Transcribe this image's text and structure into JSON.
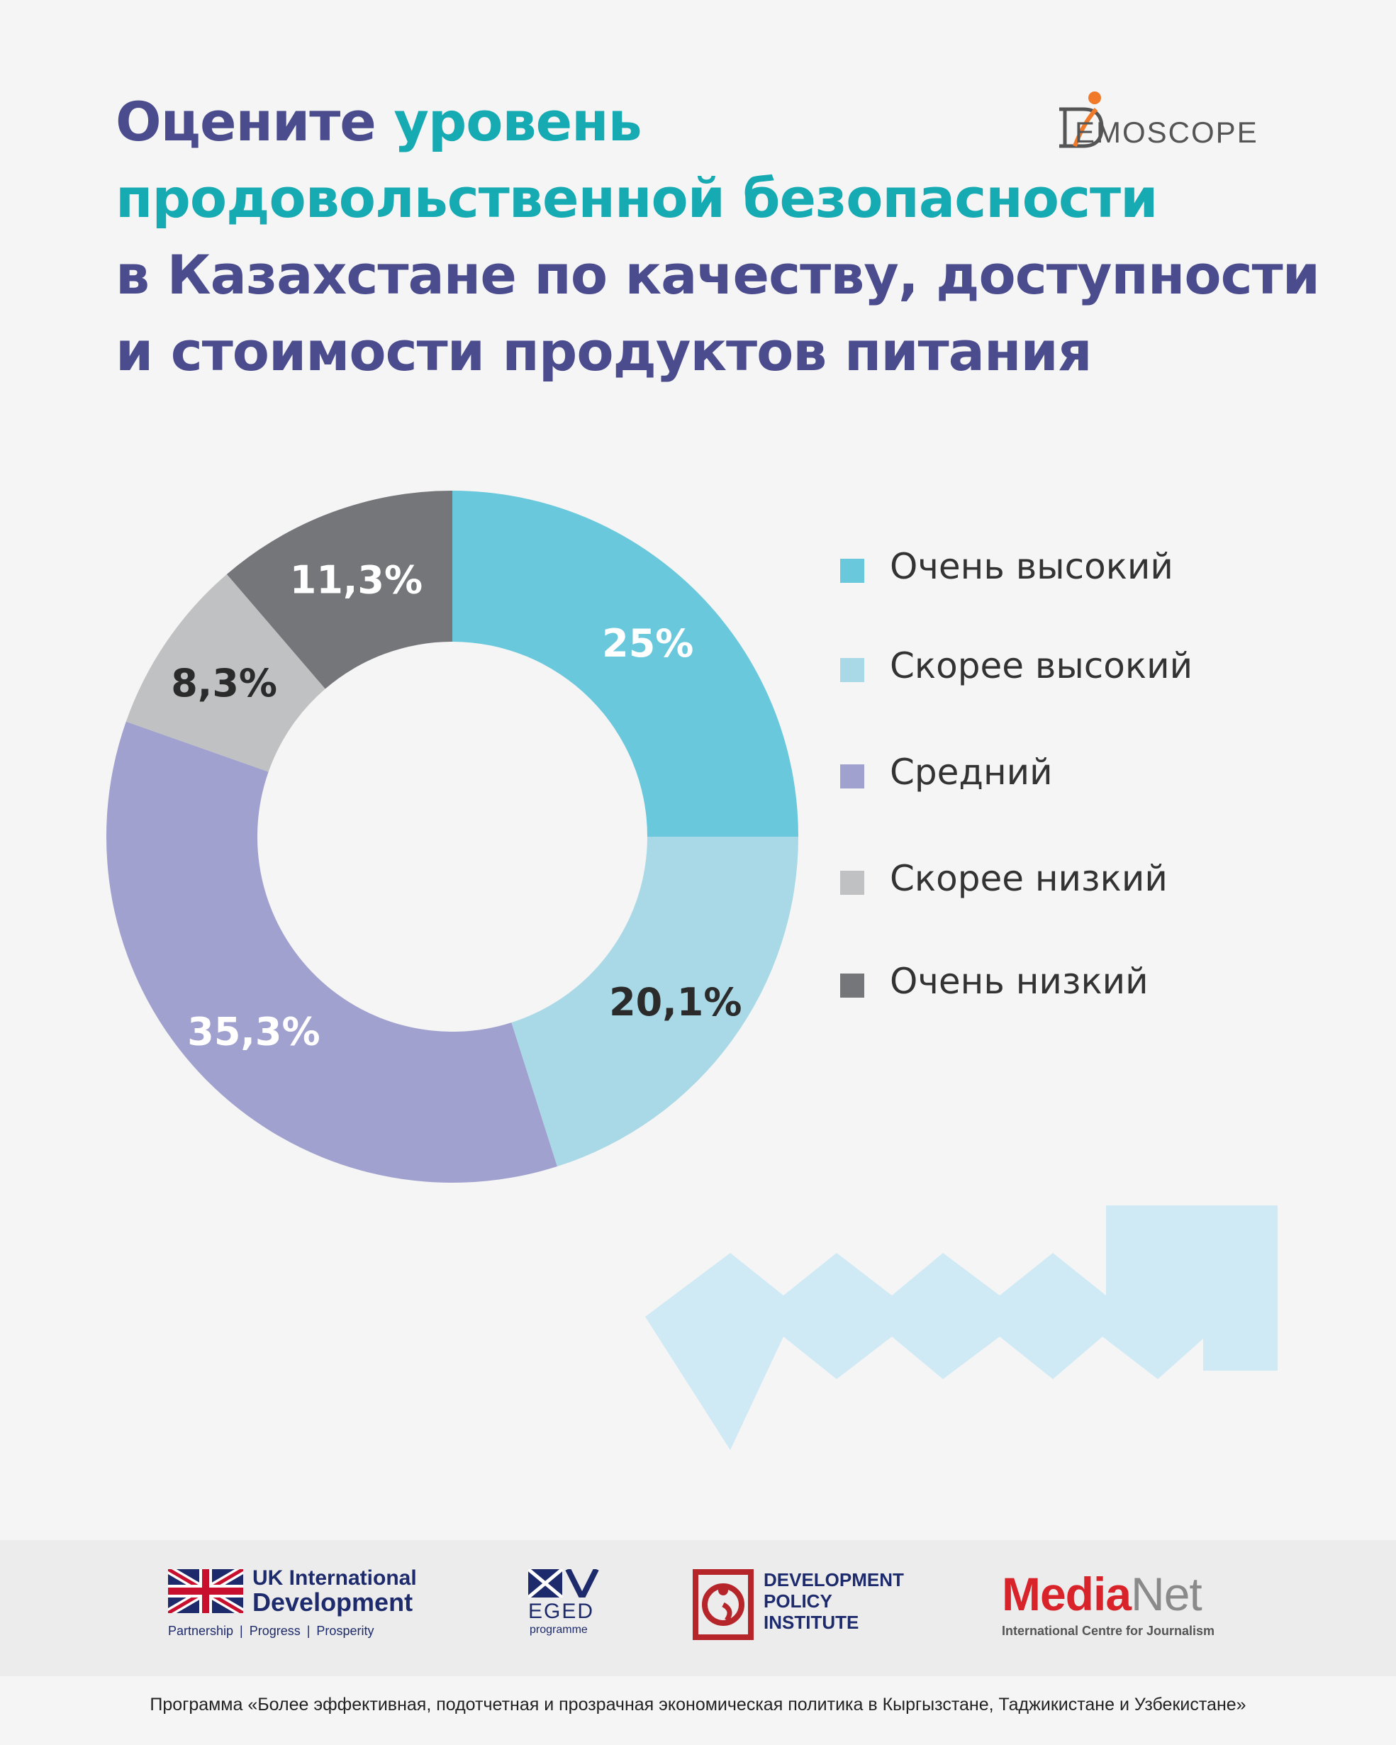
{
  "title": {
    "part1": "Оцените ",
    "part2": "уровень",
    "part3": "продовольственной безопасности",
    "part4": "в Казахстане по качеству, доступности",
    "part5": "и стоимости продуктов питания"
  },
  "logo": {
    "text": "EMOSCOPE"
  },
  "chart_data": {
    "type": "pie",
    "categories": [
      "Очень высокий",
      "Скорее высокий",
      "Средний",
      "Скорее низкий",
      "Очень низкий"
    ],
    "values": [
      25,
      20.1,
      35.3,
      8.3,
      11.3
    ],
    "labels": [
      "25%",
      "20,1%",
      "35,3%",
      "8,3%",
      "11,3%"
    ],
    "colors": [
      "#6ac8dd",
      "#a9d9e6",
      "#a1a1d0",
      "#c0c1c2",
      "#75767a"
    ],
    "label_colors": [
      "#ffffff",
      "#2b2b2b",
      "#ffffff",
      "#2b2b2b",
      "#ffffff"
    ],
    "legend_placement": "right"
  },
  "footer": {
    "uk_title_1": "UK International",
    "uk_title_2": "Development",
    "uk_tagline": "Partnership  |  Progress  |  Prosperity",
    "eged": "EGED",
    "eged_sub": "programme",
    "dpi_1": "DEVELOPMENT",
    "dpi_2": "POLICY",
    "dpi_3": "INSTITUTE",
    "medianet_1": "Media",
    "medianet_2": "Net",
    "medianet_sub": "International Centre for Journalism",
    "programme": "Программа «Более эффективная, подотчетная и прозрачная экономическая политика в Кыргызстане, Таджикистане и Узбекистане»"
  }
}
